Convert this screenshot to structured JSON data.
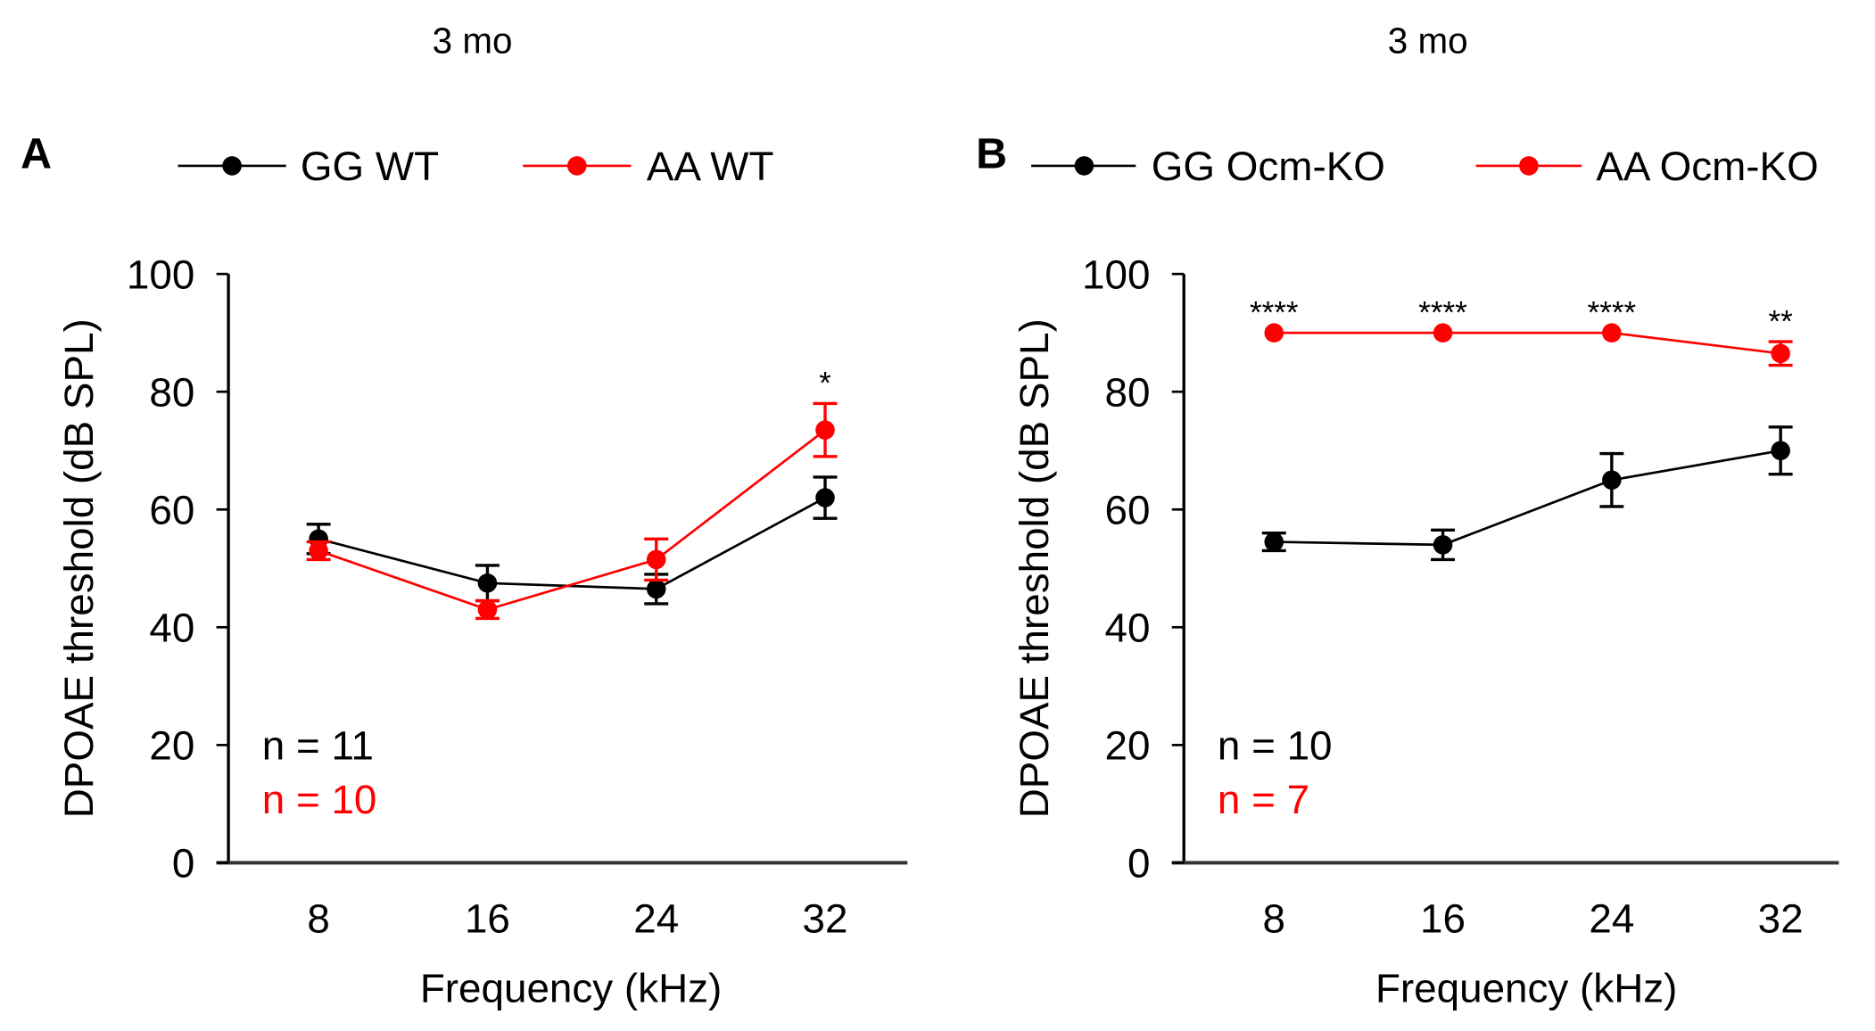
{
  "colors": {
    "black_series": "#000000",
    "red_series": "#ff0000"
  },
  "chart_data": [
    {
      "type": "line",
      "panel_label": "A",
      "title": "3 mo",
      "xlabel": "Frequency (kHz)",
      "ylabel": "DPOAE threshold (dB SPL)",
      "categories": [
        "8",
        "16",
        "24",
        "32"
      ],
      "ylim": [
        0,
        100
      ],
      "yticks": [
        "0",
        "20",
        "40",
        "60",
        "80",
        "100"
      ],
      "grid": false,
      "legend_position": "top",
      "series": [
        {
          "name": "GG WT",
          "color": "#000000",
          "values": [
            55,
            47.5,
            46.5,
            62
          ],
          "errors": [
            2.5,
            3,
            2.5,
            3.5
          ],
          "n_label": "n = 11"
        },
        {
          "name": "AA WT",
          "color": "#ff0000",
          "values": [
            53,
            43,
            51.5,
            73.5
          ],
          "errors": [
            1.5,
            1.5,
            3.5,
            4.5
          ],
          "n_label": "n = 10"
        }
      ],
      "significance": [
        "",
        "",
        "",
        "*"
      ]
    },
    {
      "type": "line",
      "panel_label": "B",
      "title": "3 mo",
      "xlabel": "Frequency (kHz)",
      "ylabel": "DPOAE threshold (dB SPL)",
      "categories": [
        "8",
        "16",
        "24",
        "32"
      ],
      "ylim": [
        0,
        100
      ],
      "yticks": [
        "0",
        "20",
        "40",
        "60",
        "80",
        "100"
      ],
      "grid": false,
      "legend_position": "top",
      "series": [
        {
          "name": "GG Ocm-KO",
          "color": "#000000",
          "values": [
            54.5,
            54,
            65,
            70
          ],
          "errors": [
            1.5,
            2.5,
            4.5,
            4
          ],
          "n_label": "n = 10"
        },
        {
          "name": "AA Ocm-KO",
          "color": "#ff0000",
          "values": [
            90,
            90,
            90,
            86.5
          ],
          "errors": [
            0,
            0,
            0,
            2
          ],
          "n_label": "n = 7"
        }
      ],
      "significance": [
        "****",
        "****",
        "****",
        "**"
      ]
    }
  ]
}
